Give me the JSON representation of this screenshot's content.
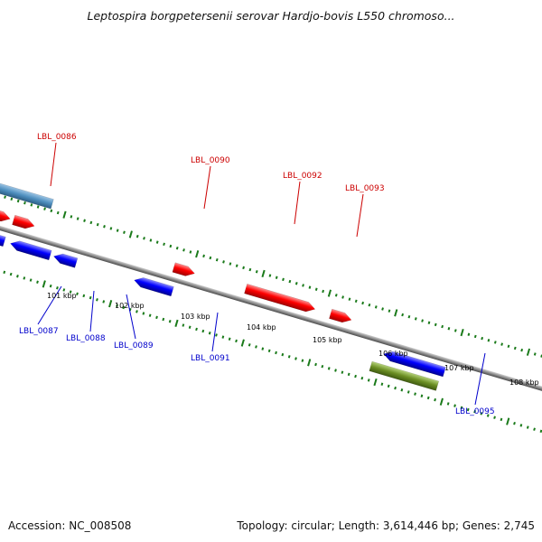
{
  "title": "Leptospira borgpetersenii serovar Hardjo-bovis L550 chromoso...",
  "footer": {
    "accession": "Accession: NC_008508",
    "topology": "Topology: circular; Length: 3,614,446 bp; Genes: 2,745"
  },
  "colors": {
    "forward_gene": "#ff0000",
    "reverse_gene": "#0000ff",
    "forward_label": "#cc0000",
    "reverse_label": "#0000cc",
    "tick": "#1a7a1a",
    "backbone": "#8a8a8a",
    "rna_blue": "#4f8fbf",
    "gray_feature": "#666666",
    "green_feature": "#6b8e23"
  },
  "scale_labels": [
    "101 kbp",
    "102 kbp",
    "103 kbp",
    "104 kbp",
    "105 kbp",
    "106 kbp",
    "107 kbp",
    "108 kbp"
  ],
  "labels_top": [
    "LBL_0086",
    "LBL_0090",
    "LBL_0092",
    "LBL_0093"
  ],
  "labels_bottom": [
    "LBL_0087",
    "LBL_0088",
    "LBL_0089",
    "LBL_0091",
    "LBL_0095"
  ]
}
